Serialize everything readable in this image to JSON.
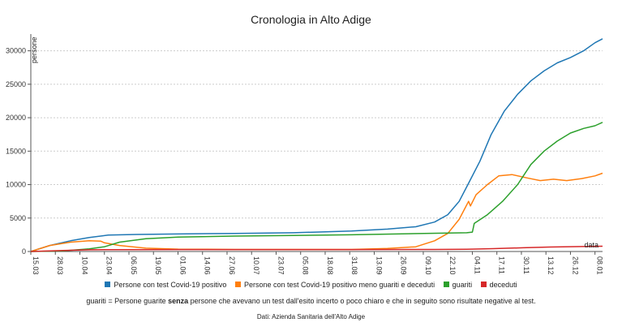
{
  "chart_data": {
    "type": "line",
    "title": "Cronologia in Alto Adige",
    "xlabel": "data",
    "ylabel": "persone",
    "ylim": [
      0,
      32500
    ],
    "xlim": [
      "2020-03-15",
      "2021-01-12"
    ],
    "yticks": [
      0,
      5000,
      10000,
      15000,
      20000,
      25000,
      30000
    ],
    "xtick_labels": [
      "15.03",
      "28.03",
      "10.04",
      "23.04",
      "06.05",
      "19.05",
      "01.06",
      "14.06",
      "27.06",
      "10.07",
      "23.07",
      "05.08",
      "18.08",
      "31.08",
      "13.09",
      "26.09",
      "09.10",
      "22.10",
      "04.11",
      "17.11",
      "30.11",
      "13.12",
      "26.12",
      "08.01"
    ],
    "grid": "horizontal dashed",
    "legend_position": "bottom",
    "series": [
      {
        "name": "Persone con test Covid-19 positivo",
        "color": "#1f77b4",
        "points": [
          [
            "2020-03-15",
            0
          ],
          [
            "2020-03-25",
            900
          ],
          [
            "2020-04-05",
            1600
          ],
          [
            "2020-04-15",
            2100
          ],
          [
            "2020-04-25",
            2450
          ],
          [
            "2020-05-10",
            2550
          ],
          [
            "2020-06-01",
            2620
          ],
          [
            "2020-07-01",
            2700
          ],
          [
            "2020-08-01",
            2800
          ],
          [
            "2020-09-01",
            3050
          ],
          [
            "2020-09-20",
            3350
          ],
          [
            "2020-10-05",
            3700
          ],
          [
            "2020-10-15",
            4400
          ],
          [
            "2020-10-22",
            5500
          ],
          [
            "2020-10-28",
            7500
          ],
          [
            "2020-11-02",
            10200
          ],
          [
            "2020-11-08",
            13500
          ],
          [
            "2020-11-14",
            17500
          ],
          [
            "2020-11-21",
            21000
          ],
          [
            "2020-11-28",
            23500
          ],
          [
            "2020-12-05",
            25500
          ],
          [
            "2020-12-12",
            27000
          ],
          [
            "2020-12-19",
            28200
          ],
          [
            "2020-12-26",
            29000
          ],
          [
            "2021-01-02",
            30000
          ],
          [
            "2021-01-08",
            31200
          ],
          [
            "2021-01-12",
            31800
          ]
        ]
      },
      {
        "name": "Persone con test Covid-19 positivo meno guariti e deceduti",
        "color": "#ff7f0e",
        "points": [
          [
            "2020-03-15",
            0
          ],
          [
            "2020-03-25",
            900
          ],
          [
            "2020-04-05",
            1400
          ],
          [
            "2020-04-15",
            1600
          ],
          [
            "2020-04-21",
            1550
          ],
          [
            "2020-04-23",
            1300
          ],
          [
            "2020-05-01",
            900
          ],
          [
            "2020-05-15",
            500
          ],
          [
            "2020-06-01",
            350
          ],
          [
            "2020-07-01",
            300
          ],
          [
            "2020-08-01",
            300
          ],
          [
            "2020-09-01",
            300
          ],
          [
            "2020-09-20",
            450
          ],
          [
            "2020-10-05",
            700
          ],
          [
            "2020-10-15",
            1600
          ],
          [
            "2020-10-22",
            2700
          ],
          [
            "2020-10-28",
            4800
          ],
          [
            "2020-11-02",
            7500
          ],
          [
            "2020-11-03",
            6800
          ],
          [
            "2020-11-06",
            8500
          ],
          [
            "2020-11-12",
            10000
          ],
          [
            "2020-11-18",
            11300
          ],
          [
            "2020-11-25",
            11500
          ],
          [
            "2020-12-03",
            11000
          ],
          [
            "2020-12-10",
            10600
          ],
          [
            "2020-12-17",
            10800
          ],
          [
            "2020-12-24",
            10600
          ],
          [
            "2021-01-01",
            10900
          ],
          [
            "2021-01-08",
            11300
          ],
          [
            "2021-01-12",
            11700
          ]
        ]
      },
      {
        "name": "guariti",
        "color": "#2ca02c",
        "points": [
          [
            "2020-03-15",
            0
          ],
          [
            "2020-04-01",
            100
          ],
          [
            "2020-04-15",
            400
          ],
          [
            "2020-04-23",
            700
          ],
          [
            "2020-05-01",
            1400
          ],
          [
            "2020-05-15",
            1900
          ],
          [
            "2020-06-01",
            2150
          ],
          [
            "2020-07-01",
            2300
          ],
          [
            "2020-08-01",
            2400
          ],
          [
            "2020-09-01",
            2500
          ],
          [
            "2020-10-01",
            2650
          ],
          [
            "2020-11-01",
            2800
          ],
          [
            "2020-11-04",
            2900
          ],
          [
            "2020-11-05",
            4200
          ],
          [
            "2020-11-12",
            5500
          ],
          [
            "2020-11-20",
            7500
          ],
          [
            "2020-11-28",
            10000
          ],
          [
            "2020-12-05",
            13000
          ],
          [
            "2020-12-12",
            15000
          ],
          [
            "2020-12-19",
            16500
          ],
          [
            "2020-12-26",
            17700
          ],
          [
            "2021-01-02",
            18400
          ],
          [
            "2021-01-08",
            18800
          ],
          [
            "2021-01-12",
            19300
          ]
        ]
      },
      {
        "name": "deceduti",
        "color": "#d62728",
        "points": [
          [
            "2020-03-15",
            0
          ],
          [
            "2020-04-01",
            150
          ],
          [
            "2020-04-15",
            250
          ],
          [
            "2020-05-01",
            280
          ],
          [
            "2020-06-01",
            292
          ],
          [
            "2020-09-01",
            294
          ],
          [
            "2020-10-15",
            300
          ],
          [
            "2020-11-01",
            330
          ],
          [
            "2020-11-15",
            430
          ],
          [
            "2020-12-01",
            560
          ],
          [
            "2020-12-15",
            670
          ],
          [
            "2021-01-01",
            740
          ],
          [
            "2021-01-12",
            790
          ]
        ]
      }
    ],
    "note": {
      "prefix": "guariti = Persone guarite ",
      "bold": "senza",
      "suffix": " persone che avevano un test dall'esito incerto o poco chiaro e che in seguito sono risultate negative al test."
    },
    "source": "Dati: Azienda Sanitaria dell'Alto Adige"
  }
}
